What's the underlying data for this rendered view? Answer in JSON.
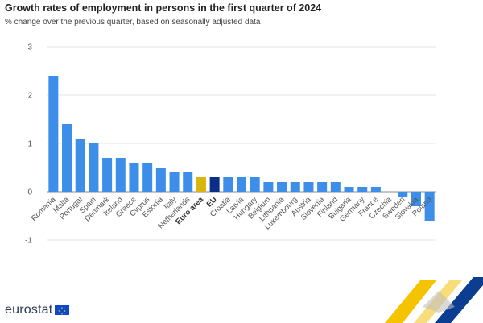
{
  "title": "Growth rates of employment in persons in the first quarter of 2024",
  "subtitle": "% change over the previous quarter, based on seasonally adjusted data",
  "brand": {
    "name": "eurostat"
  },
  "colors": {
    "country": "#3d8ee8",
    "euro_area": "#d8b60f",
    "eu": "#0b2f86",
    "gridline": "#e6e6e6",
    "zero_line": "#888888",
    "text": "#222222"
  },
  "chart_data": {
    "type": "bar",
    "title": "Growth rates of employment in persons in the first quarter of 2024",
    "subtitle": "% change over the previous quarter, based on seasonally adjusted data",
    "xlabel": "",
    "ylabel": "",
    "ylim": [
      -1,
      3
    ],
    "yticks": [
      -1,
      0,
      1,
      2,
      3
    ],
    "grid": true,
    "categories": [
      "Romania",
      "Malta",
      "Portugal",
      "Spain",
      "Denmark",
      "Ireland",
      "Greece",
      "Cyprus",
      "Estonia",
      "Italy",
      "Netherlands",
      "Euro area",
      "EU",
      "Croatia",
      "Latvia",
      "Hungary",
      "Belgium",
      "Lithuania",
      "Luxembourg",
      "Austria",
      "Slovenia",
      "Finland",
      "Bulgaria",
      "Germany",
      "France",
      "Czechia",
      "Sweden",
      "Slovakia",
      "Poland"
    ],
    "values": [
      2.4,
      1.4,
      1.1,
      1.0,
      0.7,
      0.7,
      0.6,
      0.6,
      0.5,
      0.4,
      0.4,
      0.3,
      0.3,
      0.3,
      0.3,
      0.3,
      0.2,
      0.2,
      0.2,
      0.2,
      0.2,
      0.2,
      0.1,
      0.1,
      0.1,
      0.0,
      -0.1,
      -0.3,
      -0.6
    ],
    "bold_categories": [
      "Euro area",
      "EU"
    ],
    "bar_colors": {
      "Euro area": "#d8b60f",
      "EU": "#0b2f86"
    }
  }
}
